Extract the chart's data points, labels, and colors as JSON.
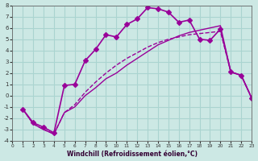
{
  "xlabel": "Windchill (Refroidissement éolien,°C)",
  "background_color": "#cce8e4",
  "grid_color": "#aad4d0",
  "line_color": "#990099",
  "xlim": [
    0,
    23
  ],
  "ylim": [
    -4,
    8
  ],
  "xticks": [
    0,
    1,
    2,
    3,
    4,
    5,
    6,
    7,
    8,
    9,
    10,
    11,
    12,
    13,
    14,
    15,
    16,
    17,
    18,
    19,
    20,
    21,
    22,
    23
  ],
  "yticks": [
    -4,
    -3,
    -2,
    -1,
    0,
    1,
    2,
    3,
    4,
    5,
    6,
    7,
    8
  ],
  "series": [
    {
      "x": [
        1,
        2,
        3,
        4,
        5,
        6,
        7,
        8,
        9,
        10,
        11,
        12,
        13,
        14,
        15,
        16,
        17,
        18,
        19,
        20,
        21,
        22,
        23
      ],
      "y": [
        -1.2,
        -2.4,
        -2.8,
        -3.3,
        0.9,
        1.0,
        3.1,
        4.1,
        5.4,
        5.2,
        6.3,
        6.8,
        7.8,
        7.7,
        7.4,
        6.5,
        6.7,
        5.0,
        4.9,
        5.9,
        2.1,
        1.8,
        -0.2
      ],
      "marker": "D",
      "markersize": 3,
      "linewidth": 1.2,
      "linestyle": "-"
    },
    {
      "x": [
        1,
        2,
        3,
        4,
        5,
        6,
        7,
        8,
        9,
        10,
        11,
        12,
        13,
        14,
        15,
        16,
        17,
        18,
        19,
        20,
        21,
        22,
        23
      ],
      "y": [
        -1.2,
        -2.5,
        -3.0,
        -3.4,
        -1.5,
        -1.0,
        0.0,
        0.7,
        1.5,
        2.0,
        2.7,
        3.3,
        3.9,
        4.5,
        4.9,
        5.3,
        5.6,
        5.8,
        6.0,
        6.2,
        2.1,
        1.8,
        -0.2
      ],
      "marker": null,
      "markersize": 0,
      "linewidth": 1.0,
      "linestyle": "-"
    },
    {
      "x": [
        1,
        2,
        3,
        4,
        5,
        6,
        7,
        8,
        9,
        10,
        11,
        12,
        13,
        14,
        15,
        16,
        17,
        18,
        19,
        20,
        21,
        22,
        23
      ],
      "y": [
        -1.2,
        -2.5,
        -3.0,
        -3.4,
        -1.5,
        -0.8,
        0.3,
        1.2,
        2.0,
        2.7,
        3.3,
        3.8,
        4.3,
        4.7,
        5.0,
        5.2,
        5.4,
        5.5,
        5.6,
        5.7,
        2.1,
        1.8,
        -0.2
      ],
      "marker": null,
      "markersize": 0,
      "linewidth": 1.0,
      "linestyle": "--"
    }
  ]
}
